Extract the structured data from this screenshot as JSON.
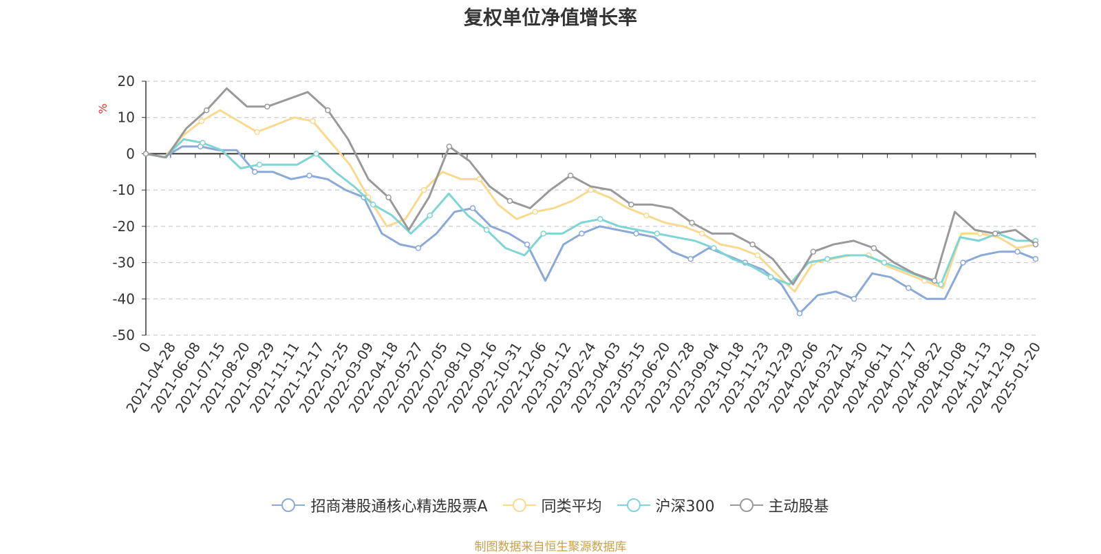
{
  "title": "复权单位净值增长率",
  "source_note": "制图数据来自恒生聚源数据库",
  "chart_data": {
    "type": "line",
    "title": "复权单位净值增长率",
    "ylabel": "%",
    "ylim": [
      -50,
      20
    ],
    "yticks": [
      20,
      10,
      0,
      -10,
      -20,
      -30,
      -40,
      -50
    ],
    "grid": true,
    "legend_position": "bottom",
    "x_tick_labels": [
      "0",
      "2021-04-28",
      "2021-06-08",
      "2021-07-15",
      "2021-08-20",
      "2021-09-29",
      "2021-11-11",
      "2021-12-17",
      "2022-01-25",
      "2022-03-09",
      "2022-04-18",
      "2022-05-27",
      "2022-07-05",
      "2022-08-10",
      "2022-09-16",
      "2022-10-31",
      "2022-12-06",
      "2023-01-12",
      "2023-02-24",
      "2023-04-03",
      "2023-05-15",
      "2023-06-20",
      "2023-07-28",
      "2023-09-04",
      "2023-10-18",
      "2023-11-23",
      "2023-12-29",
      "2024-02-06",
      "2024-03-21",
      "2024-04-30",
      "2024-06-11",
      "2024-07-17",
      "2024-08-22",
      "2024-10-08",
      "2024-11-13",
      "2024-12-19",
      "2025-01-20"
    ],
    "series": [
      {
        "name": "招商港股通核心精选股票A",
        "color": "#8aa8d8",
        "values": [
          0,
          -1,
          2,
          2,
          1,
          1,
          -5,
          -5,
          -7,
          -6,
          -7,
          -10,
          -12,
          -22,
          -25,
          -26,
          -22,
          -16,
          -15,
          -20,
          -22,
          -25,
          -35,
          -25,
          -22,
          -20,
          -21,
          -22,
          -23,
          -27,
          -29,
          -26,
          -28,
          -30,
          -32,
          -36,
          -44,
          -39,
          -38,
          -40,
          -33,
          -34,
          -37,
          -40,
          -40,
          -30,
          -28,
          -27,
          -27,
          -29
        ]
      },
      {
        "name": "同类平均",
        "color": "#f9d98e",
        "values": [
          0,
          -1,
          5,
          9,
          12,
          9,
          6,
          8,
          10,
          9,
          3,
          -3,
          -12,
          -20,
          -18,
          -10,
          -5,
          -7,
          -7,
          -14,
          -18,
          -16,
          -15,
          -13,
          -10,
          -12,
          -15,
          -17,
          -19,
          -20,
          -22,
          -25,
          -26,
          -28,
          -33,
          -38,
          -30,
          -29,
          -28,
          -28,
          -31,
          -33,
          -35,
          -37,
          -22,
          -22,
          -23,
          -26,
          -25
        ]
      },
      {
        "name": "沪深300",
        "color": "#7fd4d4",
        "values": [
          0,
          -1,
          4,
          3,
          1,
          -4,
          -3,
          -3,
          -3,
          0,
          -5,
          -9,
          -14,
          -17,
          -22,
          -17,
          -11,
          -17,
          -21,
          -26,
          -28,
          -22,
          -22,
          -19,
          -18,
          -20,
          -21,
          -22,
          -23,
          -24,
          -26,
          -29,
          -31,
          -34,
          -36,
          -30,
          -29,
          -28,
          -28,
          -30,
          -32,
          -34,
          -36,
          -23,
          -24,
          -22,
          -24,
          -24
        ]
      },
      {
        "name": "主动股基",
        "color": "#999999",
        "values": [
          0,
          -1,
          7,
          12,
          18,
          13,
          13,
          15,
          17,
          12,
          4,
          -7,
          -12,
          -21,
          -12,
          2,
          -2,
          -9,
          -13,
          -15,
          -10,
          -6,
          -9,
          -10,
          -14,
          -14,
          -15,
          -19,
          -22,
          -22,
          -25,
          -29,
          -36,
          -27,
          -25,
          -24,
          -26,
          -30,
          -33,
          -35,
          -16,
          -21,
          -22,
          -21,
          -25
        ]
      }
    ]
  }
}
